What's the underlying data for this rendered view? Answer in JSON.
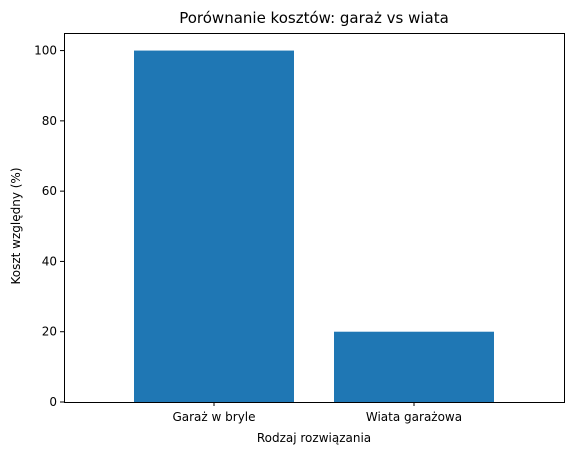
{
  "chart_data": {
    "type": "bar",
    "title": "Porównanie kosztów: garaż vs wiata",
    "xlabel": "Rodzaj rozwiązania",
    "ylabel": "Koszt względny (%)",
    "categories": [
      "Garaż w bryle",
      "Wiata garażowa"
    ],
    "values": [
      100,
      20
    ],
    "ylim": [
      0,
      105
    ],
    "yticks": [
      0,
      20,
      40,
      60,
      80,
      100
    ],
    "grid": false,
    "bar_color": "#1f77b4"
  }
}
